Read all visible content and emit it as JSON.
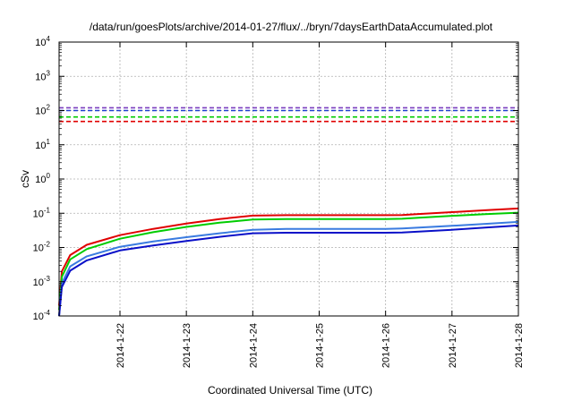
{
  "chart_data": {
    "type": "line",
    "title": "/data/run/goesPlots/archive/2014-01-27/flux/../bryn/7daysEarthDataAccumulated.plot",
    "xlabel": "Coordinated Universal Time (UTC)",
    "ylabel": "cSv",
    "y_scale": "log",
    "ylim": [
      0.0001,
      10000
    ],
    "xlim": [
      "2014-01-21T02:00",
      "2014-01-28T00:00"
    ],
    "grid": true,
    "x_ticks": [
      "2014-1-22",
      "2014-1-23",
      "2014-1-24",
      "2014-1-25",
      "2014-1-26",
      "2014-1-27",
      "2014-1-28"
    ],
    "y_ticks": [
      {
        "value": 0.0001,
        "exp": "-4"
      },
      {
        "value": 0.001,
        "exp": "-3"
      },
      {
        "value": 0.01,
        "exp": "-2"
      },
      {
        "value": 0.1,
        "exp": "-1"
      },
      {
        "value": 1,
        "exp": "0"
      },
      {
        "value": 10,
        "exp": "1"
      },
      {
        "value": 100,
        "exp": "2"
      },
      {
        "value": 1000,
        "exp": "3"
      },
      {
        "value": 10000,
        "exp": "4"
      }
    ],
    "y_tick_base": "10",
    "hlines": [
      {
        "y": 120,
        "color": "#7b3fbf"
      },
      {
        "y": 100,
        "color": "#1f3fd0"
      },
      {
        "y": 65,
        "color": "#00cc00"
      },
      {
        "y": 48,
        "color": "#e00000"
      }
    ],
    "series": [
      {
        "color": "#e00000",
        "points": [
          [
            "2014-01-21T02:00",
            0.0002
          ],
          [
            "2014-01-21T03:00",
            0.002
          ],
          [
            "2014-01-21T06:00",
            0.006
          ],
          [
            "2014-01-21T12:00",
            0.012
          ],
          [
            "2014-01-22T00:00",
            0.023
          ],
          [
            "2014-01-22T12:00",
            0.035
          ],
          [
            "2014-01-23T00:00",
            0.05
          ],
          [
            "2014-01-23T12:00",
            0.068
          ],
          [
            "2014-01-24T00:00",
            0.085
          ],
          [
            "2014-01-24T12:00",
            0.088
          ],
          [
            "2014-01-25T00:00",
            0.088
          ],
          [
            "2014-01-25T12:00",
            0.088
          ],
          [
            "2014-01-26T00:00",
            0.088
          ],
          [
            "2014-01-26T06:00",
            0.089
          ],
          [
            "2014-01-26T12:00",
            0.095
          ],
          [
            "2014-01-27T00:00",
            0.108
          ],
          [
            "2014-01-27T12:00",
            0.122
          ],
          [
            "2014-01-28T00:00",
            0.138
          ]
        ]
      },
      {
        "color": "#00cc00",
        "points": [
          [
            "2014-01-21T02:00",
            0.00015
          ],
          [
            "2014-01-21T03:00",
            0.0014
          ],
          [
            "2014-01-21T06:00",
            0.0045
          ],
          [
            "2014-01-21T12:00",
            0.009
          ],
          [
            "2014-01-22T00:00",
            0.018
          ],
          [
            "2014-01-22T12:00",
            0.028
          ],
          [
            "2014-01-23T00:00",
            0.04
          ],
          [
            "2014-01-23T12:00",
            0.053
          ],
          [
            "2014-01-24T00:00",
            0.066
          ],
          [
            "2014-01-24T12:00",
            0.068
          ],
          [
            "2014-01-25T00:00",
            0.068
          ],
          [
            "2014-01-25T12:00",
            0.068
          ],
          [
            "2014-01-26T00:00",
            0.068
          ],
          [
            "2014-01-26T06:00",
            0.069
          ],
          [
            "2014-01-26T12:00",
            0.074
          ],
          [
            "2014-01-27T00:00",
            0.084
          ],
          [
            "2014-01-27T12:00",
            0.094
          ],
          [
            "2014-01-28T00:00",
            0.104
          ]
        ]
      },
      {
        "color": "#3a7be0",
        "points": [
          [
            "2014-01-21T02:00",
            0.0001
          ],
          [
            "2014-01-21T03:00",
            0.0009
          ],
          [
            "2014-01-21T06:00",
            0.0028
          ],
          [
            "2014-01-21T12:00",
            0.0055
          ],
          [
            "2014-01-22T00:00",
            0.0105
          ],
          [
            "2014-01-22T12:00",
            0.015
          ],
          [
            "2014-01-23T00:00",
            0.02
          ],
          [
            "2014-01-23T12:00",
            0.026
          ],
          [
            "2014-01-24T00:00",
            0.033
          ],
          [
            "2014-01-24T12:00",
            0.035
          ],
          [
            "2014-01-25T00:00",
            0.035
          ],
          [
            "2014-01-25T12:00",
            0.035
          ],
          [
            "2014-01-26T00:00",
            0.035
          ],
          [
            "2014-01-26T06:00",
            0.036
          ],
          [
            "2014-01-26T12:00",
            0.038
          ],
          [
            "2014-01-27T00:00",
            0.043
          ],
          [
            "2014-01-27T12:00",
            0.049
          ],
          [
            "2014-01-28T00:00",
            0.056
          ]
        ]
      },
      {
        "color": "#0a10c8",
        "points": [
          [
            "2014-01-21T02:00",
            0.0001
          ],
          [
            "2014-01-21T03:00",
            0.0007
          ],
          [
            "2014-01-21T06:00",
            0.0021
          ],
          [
            "2014-01-21T12:00",
            0.0042
          ],
          [
            "2014-01-22T00:00",
            0.0082
          ],
          [
            "2014-01-22T12:00",
            0.0115
          ],
          [
            "2014-01-23T00:00",
            0.0155
          ],
          [
            "2014-01-23T12:00",
            0.0205
          ],
          [
            "2014-01-24T00:00",
            0.026
          ],
          [
            "2014-01-24T12:00",
            0.027
          ],
          [
            "2014-01-25T00:00",
            0.027
          ],
          [
            "2014-01-25T12:00",
            0.027
          ],
          [
            "2014-01-26T00:00",
            0.027
          ],
          [
            "2014-01-26T06:00",
            0.0275
          ],
          [
            "2014-01-26T12:00",
            0.029
          ],
          [
            "2014-01-27T00:00",
            0.033
          ],
          [
            "2014-01-27T12:00",
            0.038
          ],
          [
            "2014-01-28T00:00",
            0.044
          ]
        ]
      }
    ]
  }
}
